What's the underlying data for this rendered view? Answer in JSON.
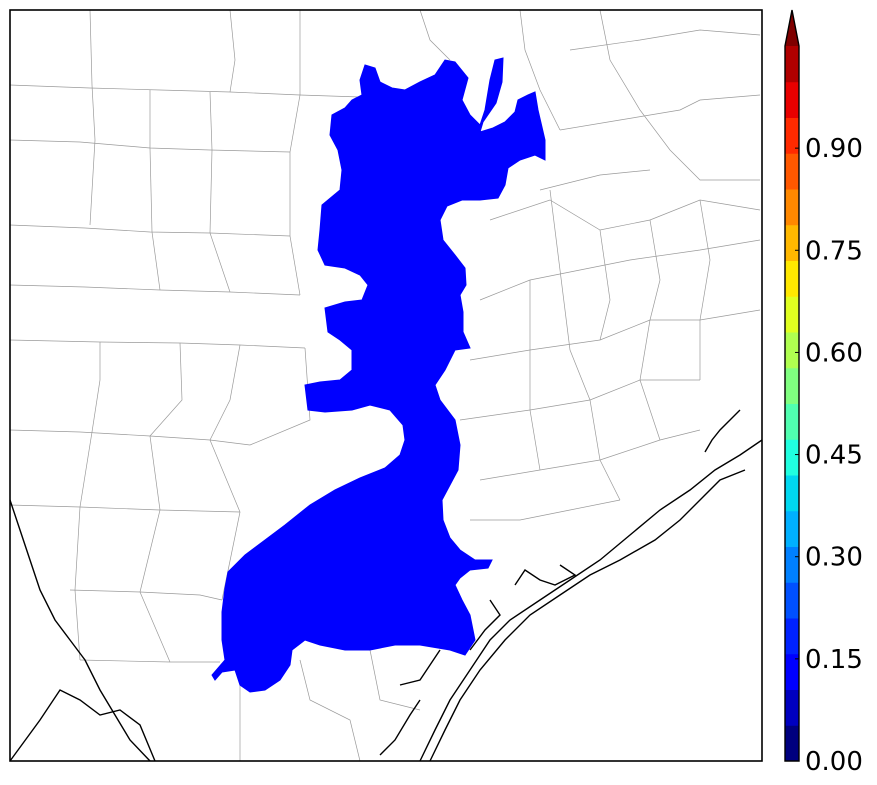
{
  "map": {
    "background": "#ffffff",
    "county_line_color": "#9a9a9a",
    "coast_line_color": "#000000",
    "region_color": "#0000ff"
  },
  "colorbar": {
    "colors": [
      "#00007f",
      "#0000c0",
      "#0000ff",
      "#0022ff",
      "#0050ff",
      "#0080ff",
      "#00b0ff",
      "#00d8f0",
      "#20ffe0",
      "#50ffb0",
      "#80ff80",
      "#b0ff50",
      "#e0ff20",
      "#ffe800",
      "#ffb800",
      "#ff8800",
      "#ff5800",
      "#ff2a00",
      "#e80000",
      "#b00000",
      "#7f0000"
    ],
    "ticks": [
      "0.00",
      "0.15",
      "0.30",
      "0.45",
      "0.60",
      "0.75",
      "0.90"
    ],
    "tick_values": [
      0.0,
      0.15,
      0.3,
      0.45,
      0.6,
      0.75,
      0.9
    ],
    "vmin": 0.0,
    "vmax": 1.05,
    "extend": "max"
  }
}
